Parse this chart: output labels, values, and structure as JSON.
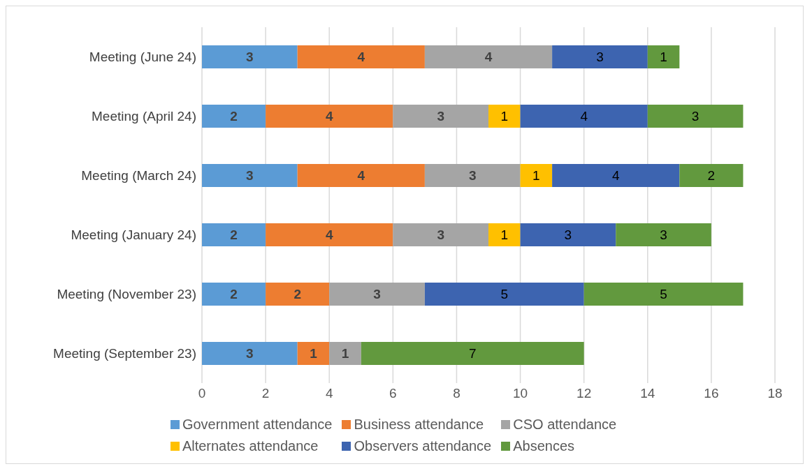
{
  "chart_data": {
    "type": "bar",
    "orientation": "horizontal",
    "stacked": true,
    "categories": [
      "Meeting (June 24)",
      "Meeting (April 24)",
      "Meeting (March 24)",
      "Meeting (January 24)",
      "Meeting (November 23)",
      "Meeting (September 23)"
    ],
    "series": [
      {
        "name": "Government attendance",
        "color": "#5b9bd5",
        "values": [
          3,
          2,
          3,
          2,
          2,
          3
        ]
      },
      {
        "name": "Business attendance",
        "color": "#ed7d31",
        "values": [
          4,
          4,
          4,
          4,
          2,
          1
        ]
      },
      {
        "name": "CSO attendance",
        "color": "#a5a5a5",
        "values": [
          4,
          3,
          3,
          3,
          3,
          1
        ]
      },
      {
        "name": "Alternates attendance",
        "color": "#ffc000",
        "values": [
          null,
          1,
          1,
          1,
          null,
          null
        ]
      },
      {
        "name": "Observers attendance",
        "color": "#3d64b0",
        "values": [
          3,
          4,
          4,
          3,
          5,
          null
        ]
      },
      {
        "name": "Absences",
        "color": "#62993e",
        "values": [
          1,
          3,
          2,
          3,
          5,
          7
        ]
      }
    ],
    "xlim": [
      0,
      18
    ],
    "xticks": [
      0,
      2,
      4,
      6,
      8,
      10,
      12,
      14,
      16,
      18
    ],
    "grid": "x",
    "legend": "bottom",
    "data_labels": true
  }
}
